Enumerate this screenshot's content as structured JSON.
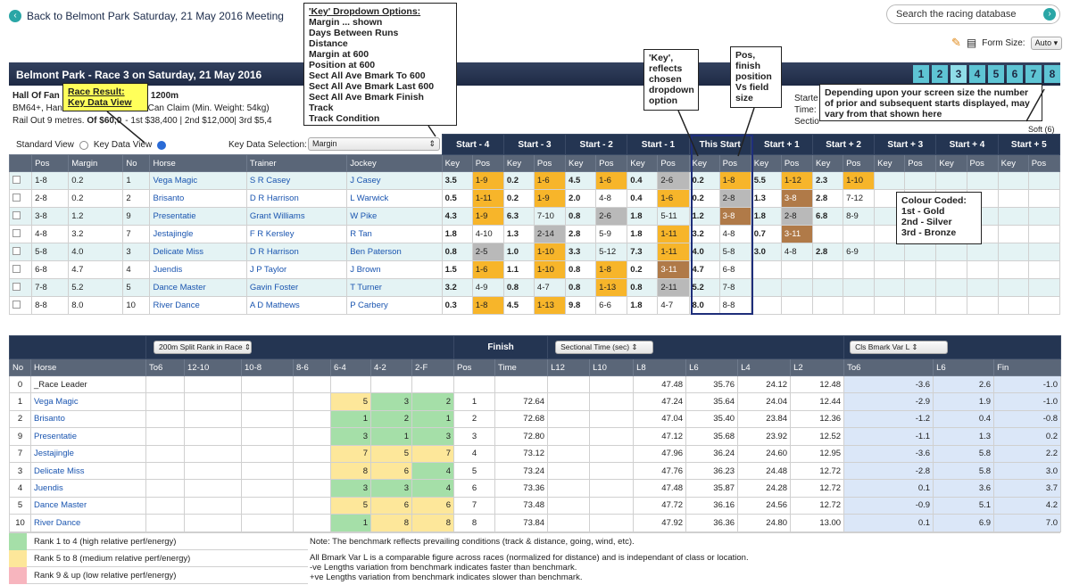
{
  "nav": {
    "back": "Back to Belmont Park Saturday, 21 May 2016 Meeting",
    "search_placeholder": "Search the racing database",
    "font_size_label": "Form Size:",
    "font_size_value": "Auto"
  },
  "race": {
    "title": "Belmont Park - Race 3 on Saturday, 21 May 2016",
    "tabs": [
      "1",
      "2",
      "3",
      "4",
      "5",
      "6",
      "7",
      "8"
    ],
    "active_tab": "3",
    "line1": "Hall Of Fan",
    "line1b": "- 1200m",
    "line2": "BM64+, Han",
    "line2b": "s Can Claim (Min. Weight: 54kg)",
    "line3": "Rail Out 9 metres.",
    "prize": "Of $60,0",
    "line3b": "- 1st $38,400 | 2nd $12,000| 3rd $5,4",
    "starters": "Starte",
    "time": "Time:",
    "sect": "Sectio",
    "going": "Soft (6)"
  },
  "view": {
    "standard": "Standard View",
    "keydata": "Key Data View",
    "selection_label": "Key Data Selection:",
    "selection_value": "Margin"
  },
  "upper": {
    "groups": [
      "Start - 4",
      "Start - 3",
      "Start - 2",
      "Start - 1",
      "This Start",
      "Start + 1",
      "Start + 2",
      "Start + 3",
      "Start + 4",
      "Start + 5"
    ],
    "cols": [
      "Pos",
      "Margin",
      "No",
      "Horse",
      "Trainer",
      "Jockey"
    ],
    "key": "Key",
    "pos": "Pos",
    "rows": [
      {
        "pos": "1-8",
        "margin": "0.2",
        "no": "1",
        "horse": "Vega Magic",
        "trainer": "S R Casey",
        "jockey": "J Casey",
        "s": [
          [
            "3.5",
            "1-9"
          ],
          [
            "0.2",
            "1-6"
          ],
          [
            "4.5",
            "1-6"
          ],
          [
            "0.4",
            "2-6"
          ],
          [
            "0.2",
            "1-8"
          ],
          [
            "5.5",
            "1-12"
          ],
          [
            "2.3",
            "1-10"
          ],
          [
            "",
            ""
          ],
          [
            "",
            ""
          ],
          [
            "",
            ""
          ]
        ]
      },
      {
        "pos": "2-8",
        "margin": "0.2",
        "no": "2",
        "horse": "Brisanto",
        "trainer": "D R Harrison",
        "jockey": "L Warwick",
        "s": [
          [
            "0.5",
            "1-11"
          ],
          [
            "0.2",
            "1-9"
          ],
          [
            "2.0",
            "4-8"
          ],
          [
            "0.4",
            "1-6"
          ],
          [
            "0.2",
            "2-8"
          ],
          [
            "1.3",
            "3-8"
          ],
          [
            "2.8",
            "7-12"
          ],
          [
            "",
            ""
          ],
          [
            "",
            ""
          ],
          [
            "",
            ""
          ]
        ]
      },
      {
        "pos": "3-8",
        "margin": "1.2",
        "no": "9",
        "horse": "Presentatie",
        "trainer": "Grant Williams",
        "jockey": "W Pike",
        "s": [
          [
            "4.3",
            "1-9"
          ],
          [
            "6.3",
            "7-10"
          ],
          [
            "0.8",
            "2-6"
          ],
          [
            "1.8",
            "5-11"
          ],
          [
            "1.2",
            "3-8"
          ],
          [
            "1.8",
            "2-8"
          ],
          [
            "6.8",
            "8-9"
          ],
          [
            "",
            ""
          ],
          [
            "",
            ""
          ],
          [
            "",
            ""
          ]
        ]
      },
      {
        "pos": "4-8",
        "margin": "3.2",
        "no": "7",
        "horse": "Jestajingle",
        "trainer": "F R Kersley",
        "jockey": "R Tan",
        "s": [
          [
            "1.8",
            "4-10"
          ],
          [
            "1.3",
            "2-14"
          ],
          [
            "2.8",
            "5-9"
          ],
          [
            "1.8",
            "1-11"
          ],
          [
            "3.2",
            "4-8"
          ],
          [
            "0.7",
            "3-11"
          ],
          [
            "",
            ""
          ],
          [
            "",
            ""
          ],
          [
            "",
            ""
          ],
          [
            "",
            ""
          ]
        ]
      },
      {
        "pos": "5-8",
        "margin": "4.0",
        "no": "3",
        "horse": "Delicate Miss",
        "trainer": "D R Harrison",
        "jockey": "Ben Paterson",
        "s": [
          [
            "0.8",
            "2-5"
          ],
          [
            "1.0",
            "1-10"
          ],
          [
            "3.3",
            "5-12"
          ],
          [
            "7.3",
            "1-11"
          ],
          [
            "4.0",
            "5-8"
          ],
          [
            "3.0",
            "4-8"
          ],
          [
            "2.8",
            "6-9"
          ],
          [
            "",
            ""
          ],
          [
            "",
            ""
          ],
          [
            "",
            ""
          ]
        ]
      },
      {
        "pos": "6-8",
        "margin": "4.7",
        "no": "4",
        "horse": "Juendis",
        "trainer": "J P Taylor",
        "jockey": "J Brown",
        "s": [
          [
            "1.5",
            "1-6"
          ],
          [
            "1.1",
            "1-10"
          ],
          [
            "0.8",
            "1-8"
          ],
          [
            "0.2",
            "3-11"
          ],
          [
            "4.7",
            "6-8"
          ],
          [
            "",
            ""
          ],
          [
            "",
            ""
          ],
          [
            "",
            ""
          ],
          [
            "",
            ""
          ],
          [
            "",
            ""
          ]
        ]
      },
      {
        "pos": "7-8",
        "margin": "5.2",
        "no": "5",
        "horse": "Dance Master",
        "trainer": "Gavin Foster",
        "jockey": "T Turner",
        "s": [
          [
            "3.2",
            "4-9"
          ],
          [
            "0.8",
            "4-7"
          ],
          [
            "0.8",
            "1-13"
          ],
          [
            "0.8",
            "2-11"
          ],
          [
            "5.2",
            "7-8"
          ],
          [
            "",
            ""
          ],
          [
            "",
            ""
          ],
          [
            "",
            ""
          ],
          [
            "",
            ""
          ],
          [
            "",
            ""
          ]
        ]
      },
      {
        "pos": "8-8",
        "margin": "8.0",
        "no": "10",
        "horse": "River Dance",
        "trainer": "A D Mathews",
        "jockey": "P Carbery",
        "s": [
          [
            "0.3",
            "1-8"
          ],
          [
            "4.5",
            "1-13"
          ],
          [
            "9.8",
            "6-6"
          ],
          [
            "1.8",
            "4-7"
          ],
          [
            "8.0",
            "8-8"
          ],
          [
            "",
            ""
          ],
          [
            "",
            ""
          ],
          [
            "",
            ""
          ],
          [
            "",
            ""
          ],
          [
            "",
            ""
          ]
        ]
      }
    ]
  },
  "lower": {
    "split_select": "200m Split Rank in Race",
    "finish": "Finish",
    "sect_select": "Sectional Time (sec)",
    "cls_select": "Cls Bmark Var L",
    "cols": [
      "No",
      "Horse",
      "To6",
      "12-10",
      "10-8",
      "8-6",
      "6-4",
      "4-2",
      "2-F",
      "Pos",
      "Time",
      "L12",
      "L10",
      "L8",
      "L6",
      "L4",
      "L2",
      "To6",
      "L6",
      "Fin"
    ],
    "rows": [
      {
        "no": "0",
        "horse": "_Race Leader",
        "r": [
          "",
          "",
          ""
        ],
        "pos": "",
        "time": "",
        "l8": "47.48",
        "l6": "35.76",
        "l4": "24.12",
        "l2": "12.48",
        "c": [
          "-3.6",
          "2.6",
          "-1.0"
        ]
      },
      {
        "no": "1",
        "horse": "Vega Magic",
        "r": [
          "5",
          "3",
          "2"
        ],
        "pos": "1",
        "time": "72.64",
        "l8": "47.24",
        "l6": "35.64",
        "l4": "24.04",
        "l2": "12.44",
        "c": [
          "-2.9",
          "1.9",
          "-1.0"
        ]
      },
      {
        "no": "2",
        "horse": "Brisanto",
        "r": [
          "1",
          "2",
          "1"
        ],
        "pos": "2",
        "time": "72.68",
        "l8": "47.04",
        "l6": "35.40",
        "l4": "23.84",
        "l2": "12.36",
        "c": [
          "-1.2",
          "0.4",
          "-0.8"
        ]
      },
      {
        "no": "9",
        "horse": "Presentatie",
        "r": [
          "3",
          "1",
          "3"
        ],
        "pos": "3",
        "time": "72.80",
        "l8": "47.12",
        "l6": "35.68",
        "l4": "23.92",
        "l2": "12.52",
        "c": [
          "-1.1",
          "1.3",
          "0.2"
        ]
      },
      {
        "no": "7",
        "horse": "Jestajingle",
        "r": [
          "7",
          "5",
          "7"
        ],
        "pos": "4",
        "time": "73.12",
        "l8": "47.96",
        "l6": "36.24",
        "l4": "24.60",
        "l2": "12.95",
        "c": [
          "-3.6",
          "5.8",
          "2.2"
        ]
      },
      {
        "no": "3",
        "horse": "Delicate Miss",
        "r": [
          "8",
          "6",
          "4"
        ],
        "pos": "5",
        "time": "73.24",
        "l8": "47.76",
        "l6": "36.23",
        "l4": "24.48",
        "l2": "12.72",
        "c": [
          "-2.8",
          "5.8",
          "3.0"
        ]
      },
      {
        "no": "4",
        "horse": "Juendis",
        "r": [
          "3",
          "3",
          "4"
        ],
        "pos": "6",
        "time": "73.36",
        "l8": "47.48",
        "l6": "35.87",
        "l4": "24.28",
        "l2": "12.72",
        "c": [
          "0.1",
          "3.6",
          "3.7"
        ]
      },
      {
        "no": "5",
        "horse": "Dance Master",
        "r": [
          "5",
          "6",
          "6"
        ],
        "pos": "7",
        "time": "73.48",
        "l8": "47.72",
        "l6": "36.16",
        "l4": "24.56",
        "l2": "12.72",
        "c": [
          "-0.9",
          "5.1",
          "4.2"
        ]
      },
      {
        "no": "10",
        "horse": "River Dance",
        "r": [
          "1",
          "8",
          "8"
        ],
        "pos": "8",
        "time": "73.84",
        "l8": "47.92",
        "l6": "36.36",
        "l4": "24.80",
        "l2": "13.00",
        "c": [
          "0.1",
          "6.9",
          "7.0"
        ]
      }
    ]
  },
  "legend": {
    "rank1": "Rank 1 to 4 (high relative perf/energy)",
    "rank2": "Rank 5 to 8 (medium relative perf/energy)",
    "rank3": "Rank 9 & up (low relative perf/energy)",
    "note1": "Note: The benchmark reflects prevailing conditions (track & distance, going, wind, etc).",
    "note2": "All Bmark Var L is a comparable figure across races (normalized for distance) and is independant of class or location.",
    "note3": "-ve Lengths variation from benchmark indicates faster than benchmark.",
    "note4": "+ve Lengths variation from benchmark indicates slower than benchmark."
  },
  "annotations": {
    "options_title": "'Key' Dropdown Options:",
    "options": [
      "Margin ... shown",
      "Days Between Runs",
      "Distance",
      "Margin at 600",
      "Position at 600",
      "Sect All Ave Bmark To 600",
      "Sect All Ave Bmark Last 600",
      "Sect All Ave Bmark Finish",
      "Track",
      "Track Condition"
    ],
    "result": "Race Result: Key Data View",
    "key_note": "'Key', reflects chosen dropdown option",
    "pos_note": "Pos, finish position Vs field size",
    "depend_note": "Depending upon your screen size the number of prior and subsequent starts displayed, may vary from that shown here",
    "colour_title": "Colour Coded:",
    "colour_lines": [
      "1st - Gold",
      "2nd - Silver",
      "3rd - Bronze"
    ]
  },
  "colors": {
    "gold": "#f7b52a",
    "silver": "#b9b9b9",
    "bronze": "#b07a48",
    "header": "#243552"
  }
}
